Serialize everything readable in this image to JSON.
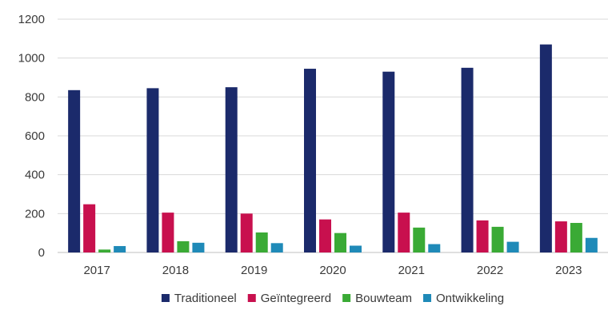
{
  "chart_data": {
    "type": "bar",
    "categories": [
      "2017",
      "2018",
      "2019",
      "2020",
      "2021",
      "2022",
      "2023"
    ],
    "series": [
      {
        "name": "Traditioneel",
        "color": "#1b2a6b",
        "values": [
          835,
          845,
          850,
          945,
          930,
          950,
          1070
        ]
      },
      {
        "name": "Geïntegreerd",
        "color": "#c8104e",
        "values": [
          248,
          205,
          200,
          170,
          205,
          165,
          160
        ]
      },
      {
        "name": "Bouwteam",
        "color": "#3aaa35",
        "values": [
          15,
          58,
          103,
          100,
          128,
          132,
          152
        ]
      },
      {
        "name": "Ontwikkeling",
        "color": "#1f8ab8",
        "values": [
          33,
          50,
          48,
          35,
          43,
          55,
          75
        ]
      }
    ],
    "ylim": [
      0,
      1200
    ],
    "yticks": [
      0,
      200,
      400,
      600,
      800,
      1000,
      1200
    ],
    "grid": true,
    "legend": "bottom"
  }
}
